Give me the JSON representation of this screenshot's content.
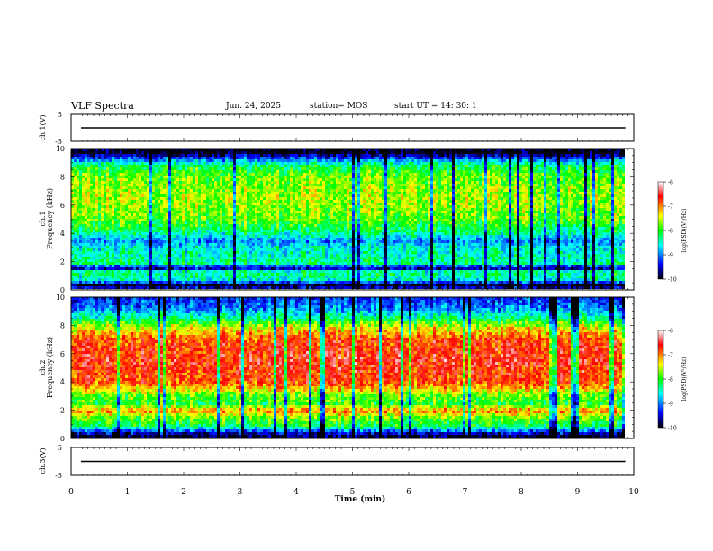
{
  "header": {
    "title": "VLF Spectra",
    "date": "Jun. 24, 2025",
    "station": "station= MOS",
    "start_ut": "start  UT =   14: 30: 1"
  },
  "colors": {
    "colormap": [
      "#000000",
      "#0000ff",
      "#00ffff",
      "#00ff00",
      "#ffff00",
      "#ff0000",
      "#ffffff"
    ]
  },
  "chart_data": [
    {
      "type": "line",
      "name": "ch1-waveform",
      "ylabel": "ch.1(V)",
      "ylim": [
        -5,
        5
      ],
      "yticks": [
        "5",
        "-5"
      ],
      "xlim": [
        0,
        10
      ],
      "baseline_value": 0
    },
    {
      "type": "heatmap",
      "name": "ch1-spectrogram",
      "ylabel": "ch.1\nFrequency (kHz)",
      "ylim": [
        0,
        10
      ],
      "yticks": [
        "0",
        "2",
        "4",
        "6",
        "8",
        "10"
      ],
      "xlim": [
        0,
        10
      ],
      "data_end_min": 9.85,
      "colorbar": {
        "label": "log(PSD)(V²/Hz)",
        "range": [
          -10,
          -6
        ],
        "ticks": [
          "-6",
          "-7",
          "-8",
          "-9",
          "-10"
        ]
      },
      "freq_profile_logpsd": [
        {
          "f": 0.0,
          "v": -9.4
        },
        {
          "f": 0.3,
          "v": -10.0
        },
        {
          "f": 0.6,
          "v": -8.6
        },
        {
          "f": 1.2,
          "v": -8.2
        },
        {
          "f": 1.5,
          "v": -9.8
        },
        {
          "f": 1.8,
          "v": -8.3
        },
        {
          "f": 3.0,
          "v": -8.6
        },
        {
          "f": 3.4,
          "v": -9.0
        },
        {
          "f": 4.0,
          "v": -8.3
        },
        {
          "f": 5.0,
          "v": -7.8
        },
        {
          "f": 6.5,
          "v": -7.6
        },
        {
          "f": 8.0,
          "v": -7.8
        },
        {
          "f": 8.8,
          "v": -8.2
        },
        {
          "f": 9.3,
          "v": -9.2
        },
        {
          "f": 9.7,
          "v": -10.0
        },
        {
          "f": 10.0,
          "v": -10.0
        }
      ]
    },
    {
      "type": "heatmap",
      "name": "ch2-spectrogram",
      "ylabel": "ch.2\nFrequency (kHz)",
      "ylim": [
        0,
        10
      ],
      "yticks": [
        "0",
        "2",
        "4",
        "6",
        "8",
        "10"
      ],
      "xlim": [
        0,
        10
      ],
      "data_end_min": 9.85,
      "colorbar": {
        "label": "log(PSD)(V²/Hz)",
        "range": [
          -10,
          -6
        ],
        "ticks": [
          "-6",
          "-7",
          "-8",
          "-9",
          "-10"
        ]
      },
      "freq_profile_logpsd": [
        {
          "f": 0.0,
          "v": -10.0
        },
        {
          "f": 0.3,
          "v": -9.5
        },
        {
          "f": 0.8,
          "v": -8.2
        },
        {
          "f": 1.4,
          "v": -7.8
        },
        {
          "f": 1.9,
          "v": -7.0
        },
        {
          "f": 2.4,
          "v": -8.0
        },
        {
          "f": 3.0,
          "v": -7.8
        },
        {
          "f": 3.5,
          "v": -7.2
        },
        {
          "f": 4.0,
          "v": -6.8
        },
        {
          "f": 5.5,
          "v": -6.6
        },
        {
          "f": 7.0,
          "v": -6.8
        },
        {
          "f": 7.8,
          "v": -7.4
        },
        {
          "f": 8.5,
          "v": -8.3
        },
        {
          "f": 9.2,
          "v": -9.0
        },
        {
          "f": 10.0,
          "v": -9.3
        }
      ]
    },
    {
      "type": "line",
      "name": "ch3-waveform",
      "ylabel": "ch.3(V)",
      "ylim": [
        -5,
        5
      ],
      "yticks": [
        "5",
        "-5"
      ],
      "xlim": [
        0,
        10
      ],
      "baseline_value": 0
    }
  ],
  "x_axis": {
    "label": "Time (min)",
    "ticks": [
      "0",
      "1",
      "2",
      "3",
      "4",
      "5",
      "6",
      "7",
      "8",
      "9",
      "10"
    ]
  }
}
